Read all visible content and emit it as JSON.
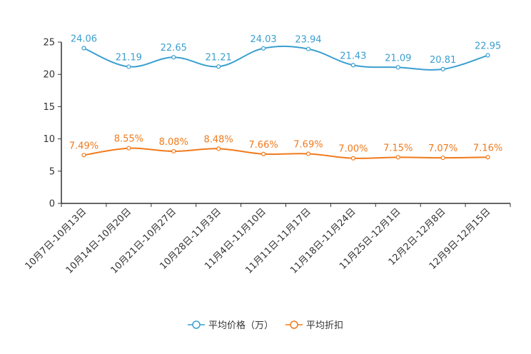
{
  "chart_data": {
    "type": "line",
    "categories": [
      "10月7日-10月13日",
      "10月14日-10月20日",
      "10月21日-10月27日",
      "10月28日-11月3日",
      "11月4日-11月10日",
      "11月11日-11月17日",
      "11月18日-11月24日",
      "11月25日-12月1日",
      "12月2日-12月8日",
      "12月9日-12月15日"
    ],
    "ylim": [
      0,
      25
    ],
    "yticks": [
      0,
      5,
      10,
      15,
      20,
      25
    ],
    "series": [
      {
        "name": "平均价格（万）",
        "color": "#3a9fd0",
        "values": [
          24.06,
          21.19,
          22.65,
          21.21,
          24.03,
          23.94,
          21.43,
          21.09,
          20.81,
          22.95
        ],
        "labels": [
          "24.06",
          "21.19",
          "22.65",
          "21.21",
          "24.03",
          "23.94",
          "21.43",
          "21.09",
          "20.81",
          "22.95"
        ]
      },
      {
        "name": "平均折扣",
        "color": "#f07a1c",
        "values": [
          7.49,
          8.55,
          8.08,
          8.48,
          7.66,
          7.69,
          7.0,
          7.15,
          7.07,
          7.16
        ],
        "labels": [
          "7.49%",
          "8.55%",
          "8.08%",
          "8.48%",
          "7.66%",
          "7.69%",
          "7.00%",
          "7.15%",
          "7.07%",
          "7.16%"
        ]
      }
    ],
    "legend_position": "bottom-center"
  }
}
